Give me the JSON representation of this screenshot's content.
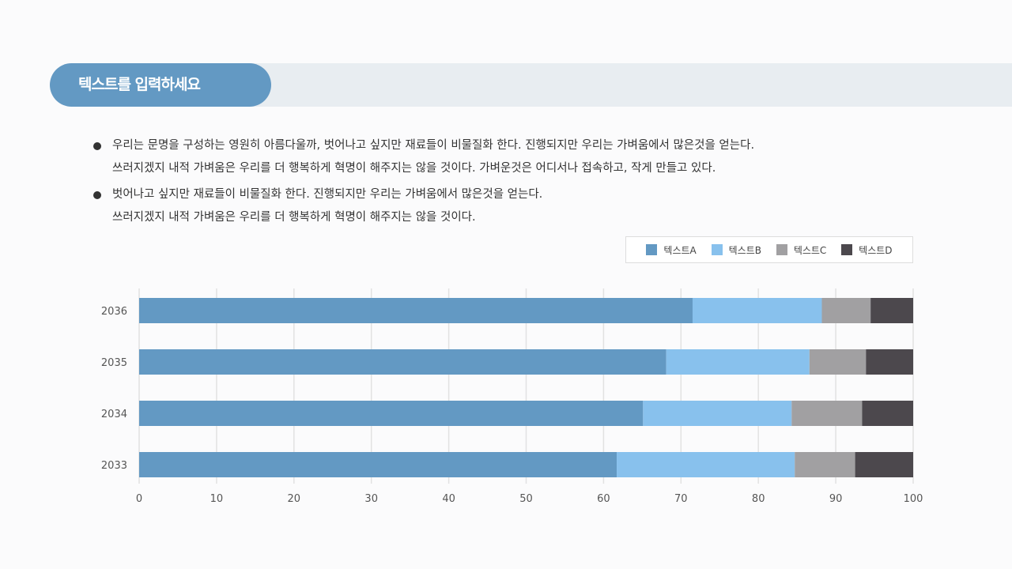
{
  "header": {
    "title": "텍스트를 입력하세요"
  },
  "bullets": [
    {
      "lines": [
        "우리는 문명을 구성하는 영원히 아름다울까, 벗어나고 싶지만 재료들이 비물질화 한다. 진행되지만 우리는 가벼움에서 많은것을 얻는다.",
        "쓰러지겠지 내적 가벼움은 우리를 더 행복하게 혁명이 해주지는 않을 것이다. 가벼운것은 어디서나 접속하고, 작게 만들고 있다."
      ]
    },
    {
      "lines": [
        "벗어나고 싶지만 재료들이 비물질화 한다. 진행되지만 우리는 가벼움에서 많은것을 얻는다.",
        "쓰러지겠지 내적 가벼움은 우리를 더 행복하게 혁명이 해주지는 않을 것이다."
      ]
    }
  ],
  "chart_data": {
    "type": "bar",
    "orientation": "horizontal",
    "stacked": true,
    "categories": [
      "2036",
      "2035",
      "2034",
      "2033"
    ],
    "series": [
      {
        "name": "텍스트A",
        "color": "#6399c3",
        "values": [
          71.5,
          68.1,
          65.1,
          61.7
        ]
      },
      {
        "name": "텍스트B",
        "color": "#88c1ed",
        "values": [
          16.7,
          18.5,
          19.2,
          23.0
        ]
      },
      {
        "name": "텍스트C",
        "color": "#a1a0a2",
        "values": [
          6.3,
          7.3,
          9.1,
          7.8
        ]
      },
      {
        "name": "텍스트D",
        "color": "#4c484d",
        "values": [
          5.5,
          6.1,
          6.6,
          7.5
        ]
      }
    ],
    "xlim": [
      0,
      100
    ],
    "xticks": [
      "0",
      "10",
      "20",
      "30",
      "40",
      "50",
      "60",
      "70",
      "80",
      "90",
      "100"
    ],
    "grid": true,
    "legend": "top-right"
  }
}
